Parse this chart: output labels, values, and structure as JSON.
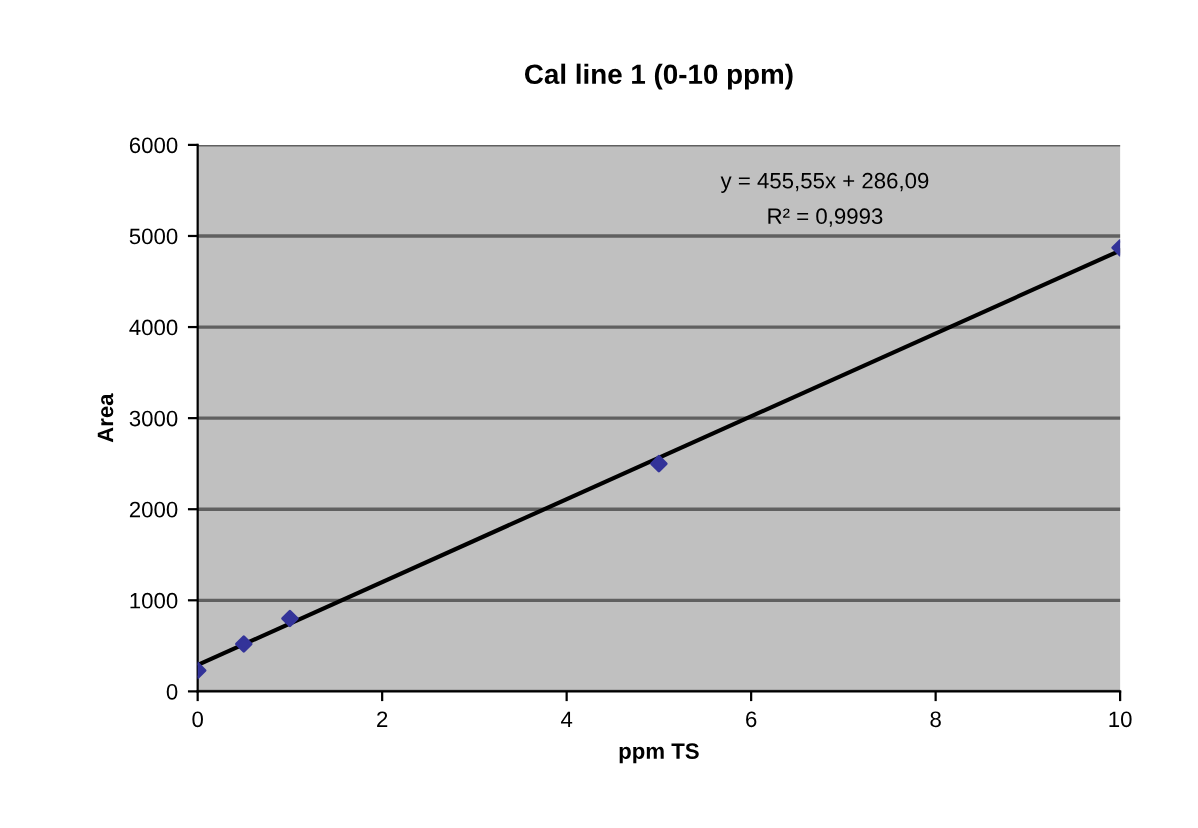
{
  "chart_data": {
    "type": "scatter",
    "title": "Cal line 1 (0-10 ppm)",
    "xlabel": "ppm TS",
    "ylabel": "Area",
    "series": [
      {
        "color": "#333399",
        "marker": "diamond",
        "x": [
          0,
          0.5,
          1,
          5,
          10
        ],
        "values": [
          230,
          520,
          800,
          2500,
          4870
        ]
      },
      {
        "type": "line",
        "color": "#000000",
        "marker": "none",
        "x": [
          0,
          10
        ],
        "values": [
          290,
          4840
        ]
      }
    ],
    "xlim": [
      0,
      10
    ],
    "xticks": [
      0,
      2,
      4,
      6,
      8,
      10
    ],
    "ylim": [
      0,
      6000
    ],
    "yticks": [
      0,
      1000,
      2000,
      3000,
      4000,
      5000,
      6000
    ],
    "grid": "y",
    "legend": false,
    "annotations": [
      "y = 455,55x + 286,09",
      "R² = 0,9993"
    ]
  }
}
